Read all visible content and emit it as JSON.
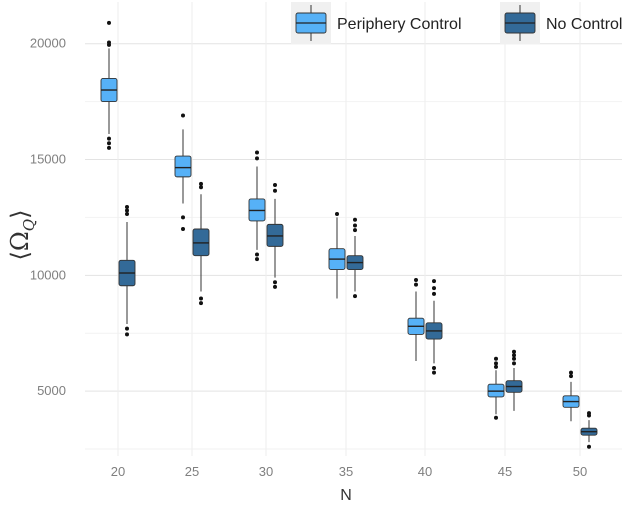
{
  "chart_data": {
    "type": "boxplot",
    "title": "",
    "xlabel": "N",
    "ylabel": "⟨Ω_Q⟩",
    "ylabel_parts": {
      "left": "⟨",
      "omega": "Ω",
      "sub": "Q",
      "right": "⟩"
    },
    "categories": [
      "20",
      "25",
      "30",
      "35",
      "40",
      "45",
      "50"
    ],
    "y_ticks": [
      5000,
      10000,
      15000,
      20000
    ],
    "y_tick_labels": [
      "5000",
      "10000",
      "15000",
      "20000"
    ],
    "ylim": [
      2200,
      21800
    ],
    "grid": true,
    "legend_position": "top-right",
    "series": [
      {
        "name": "Periphery Control",
        "color": "#56b1f7",
        "boxes": [
          {
            "q1": 17500,
            "median": 18000,
            "q3": 18500,
            "whisker_low": 16100,
            "whisker_high": 19800,
            "outliers": [
              15500,
              15700,
              15900,
              19950,
              20050,
              20900
            ]
          },
          {
            "q1": 14250,
            "median": 14650,
            "q3": 15150,
            "whisker_low": 13100,
            "whisker_high": 16300,
            "outliers": [
              12000,
              12500,
              16900
            ]
          },
          {
            "q1": 12350,
            "median": 12800,
            "q3": 13300,
            "whisker_low": 11100,
            "whisker_high": 14700,
            "outliers": [
              10700,
              10900,
              15050,
              15300
            ]
          },
          {
            "q1": 10250,
            "median": 10700,
            "q3": 11150,
            "whisker_low": 9000,
            "whisker_high": 12500,
            "outliers": [
              12650
            ]
          },
          {
            "q1": 7450,
            "median": 7800,
            "q3": 8150,
            "whisker_low": 6300,
            "whisker_high": 9300,
            "outliers": [
              9600,
              9800
            ]
          },
          {
            "q1": 4750,
            "median": 5000,
            "q3": 5300,
            "whisker_low": 4000,
            "whisker_high": 5900,
            "outliers": [
              3850,
              6050,
              6200,
              6400
            ]
          },
          {
            "q1": 4300,
            "median": 4550,
            "q3": 4800,
            "whisker_low": 3700,
            "whisker_high": 5400,
            "outliers": [
              5650,
              5800
            ]
          }
        ]
      },
      {
        "name": "No Control",
        "color": "#336a98",
        "boxes": [
          {
            "q1": 9550,
            "median": 10100,
            "q3": 10650,
            "whisker_low": 7900,
            "whisker_high": 12300,
            "outliers": [
              7450,
              7700,
              12650,
              12800,
              12950
            ]
          },
          {
            "q1": 10850,
            "median": 11400,
            "q3": 12000,
            "whisker_low": 9300,
            "whisker_high": 13500,
            "outliers": [
              8800,
              9000,
              13800,
              13950
            ]
          },
          {
            "q1": 11250,
            "median": 11700,
            "q3": 12200,
            "whisker_low": 9900,
            "whisker_high": 13300,
            "outliers": [
              9500,
              9700,
              13650,
              13900
            ]
          },
          {
            "q1": 10250,
            "median": 10550,
            "q3": 10850,
            "whisker_low": 9300,
            "whisker_high": 11700,
            "outliers": [
              9100,
              11950,
              12150,
              12400
            ]
          },
          {
            "q1": 7250,
            "median": 7600,
            "q3": 7950,
            "whisker_low": 6200,
            "whisker_high": 8900,
            "outliers": [
              5800,
              6000,
              9200,
              9450,
              9750
            ]
          },
          {
            "q1": 4950,
            "median": 5200,
            "q3": 5450,
            "whisker_low": 4150,
            "whisker_high": 6000,
            "outliers": [
              6200,
              6400,
              6550,
              6700
            ]
          },
          {
            "q1": 3100,
            "median": 3250,
            "q3": 3400,
            "whisker_low": 2800,
            "whisker_high": 3750,
            "outliers": [
              2600,
              3950,
              4050
            ]
          }
        ]
      }
    ]
  }
}
